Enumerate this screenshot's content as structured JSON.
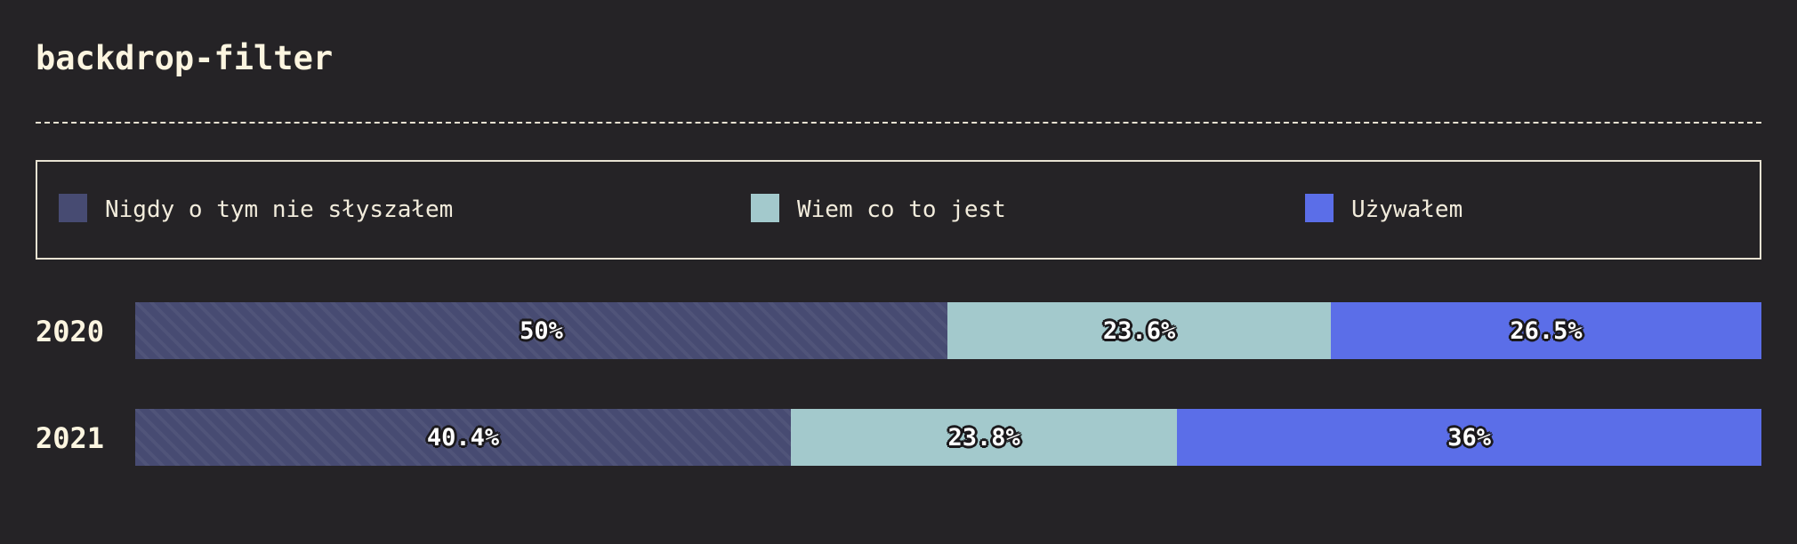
{
  "title": "backdrop-filter",
  "legend": [
    {
      "label": "Nigdy o tym nie słyszałem",
      "color": "#474b72"
    },
    {
      "label": "Wiem co to jest",
      "color": "#a3c9cc"
    },
    {
      "label": "Używałem",
      "color": "#5b6ee8"
    }
  ],
  "chart_data": {
    "type": "bar",
    "orientation": "horizontal",
    "stacked": true,
    "normalized": true,
    "title": "backdrop-filter",
    "categories": [
      "2020",
      "2021"
    ],
    "series": [
      {
        "name": "Nigdy o tym nie słyszałem",
        "values": [
          50,
          40.4
        ],
        "labels": [
          "50%",
          "40.4%"
        ],
        "color": "#474b72"
      },
      {
        "name": "Wiem co to jest",
        "values": [
          23.6,
          23.8
        ],
        "labels": [
          "23.6%",
          "23.8%"
        ],
        "color": "#a3c9cc"
      },
      {
        "name": "Używałem",
        "values": [
          26.5,
          36
        ],
        "labels": [
          "26.5%",
          "36%"
        ],
        "color": "#5b6ee8"
      }
    ],
    "legend_position": "top",
    "grid": false
  }
}
